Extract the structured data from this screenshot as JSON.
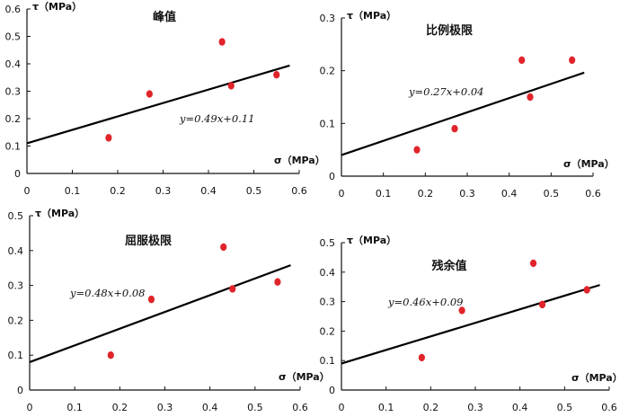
{
  "chart_data": [
    {
      "type": "scatter",
      "title": "峰值",
      "ylabel": "τ（MPa）",
      "xlabel": "σ（MPa）",
      "xlim": [
        0,
        0.6
      ],
      "ylim": [
        0,
        0.6
      ],
      "xticks": [
        "0",
        "0.1",
        "0.2",
        "0.3",
        "0.4",
        "0.5",
        "0.6"
      ],
      "yticks": [
        "0",
        "0.1",
        "0.2",
        "0.3",
        "0.4",
        "0.5",
        "0.6"
      ],
      "x": [
        0.18,
        0.27,
        0.43,
        0.45,
        0.55
      ],
      "y": [
        0.13,
        0.29,
        0.48,
        0.32,
        0.36
      ],
      "fit": {
        "slope": 0.49,
        "intercept": 0.11,
        "label": "y=0.49x+0.11"
      }
    },
    {
      "type": "scatter",
      "title": "比例极限",
      "ylabel": "τ（MPa）",
      "xlabel": "σ（MPa）",
      "xlim": [
        0,
        0.6
      ],
      "ylim": [
        0,
        0.3
      ],
      "xticks": [
        "0",
        "0.1",
        "0.2",
        "0.3",
        "0.4",
        "0.5",
        "0.6"
      ],
      "yticks": [
        "0",
        "0.1",
        "0.2",
        "0.3"
      ],
      "x": [
        0.18,
        0.27,
        0.43,
        0.45,
        0.55
      ],
      "y": [
        0.05,
        0.09,
        0.22,
        0.15,
        0.22
      ],
      "fit": {
        "slope": 0.27,
        "intercept": 0.04,
        "label": "y=0.27x+0.04"
      }
    },
    {
      "type": "scatter",
      "title": "屈服极限",
      "ylabel": "τ（MPa）",
      "xlabel": "σ（MPa）",
      "xlim": [
        0,
        0.6
      ],
      "ylim": [
        0,
        0.5
      ],
      "xticks": [
        "0",
        "0.1",
        "0.2",
        "0.3",
        "0.4",
        "0.5",
        "0.6"
      ],
      "yticks": [
        "0",
        "0.1",
        "0.2",
        "0.3",
        "0.4",
        "0.5"
      ],
      "x": [
        0.18,
        0.27,
        0.43,
        0.45,
        0.55
      ],
      "y": [
        0.1,
        0.26,
        0.41,
        0.29,
        0.31
      ],
      "fit": {
        "slope": 0.48,
        "intercept": 0.08,
        "label": "y=0.48x+0.08"
      }
    },
    {
      "type": "scatter",
      "title": "残余值",
      "ylabel": "τ（MPa）",
      "xlabel": "σ（MPa）",
      "xlim": [
        0,
        0.6
      ],
      "ylim": [
        0,
        0.5
      ],
      "xticks": [
        "0",
        "0.1",
        "0.2",
        "0.3",
        "0.4",
        "0.5",
        "0.6"
      ],
      "yticks": [
        "0",
        "0.1",
        "0.2",
        "0.3",
        "0.4",
        "0.5"
      ],
      "x": [
        0.18,
        0.27,
        0.43,
        0.45,
        0.55
      ],
      "y": [
        0.11,
        0.27,
        0.43,
        0.29,
        0.34
      ],
      "fit": {
        "slope": 0.46,
        "intercept": 0.09,
        "label": "y=0.46x+0.09"
      }
    }
  ],
  "colors": {
    "point": "#e0242a",
    "line": "#000000",
    "axis": "#111111"
  }
}
